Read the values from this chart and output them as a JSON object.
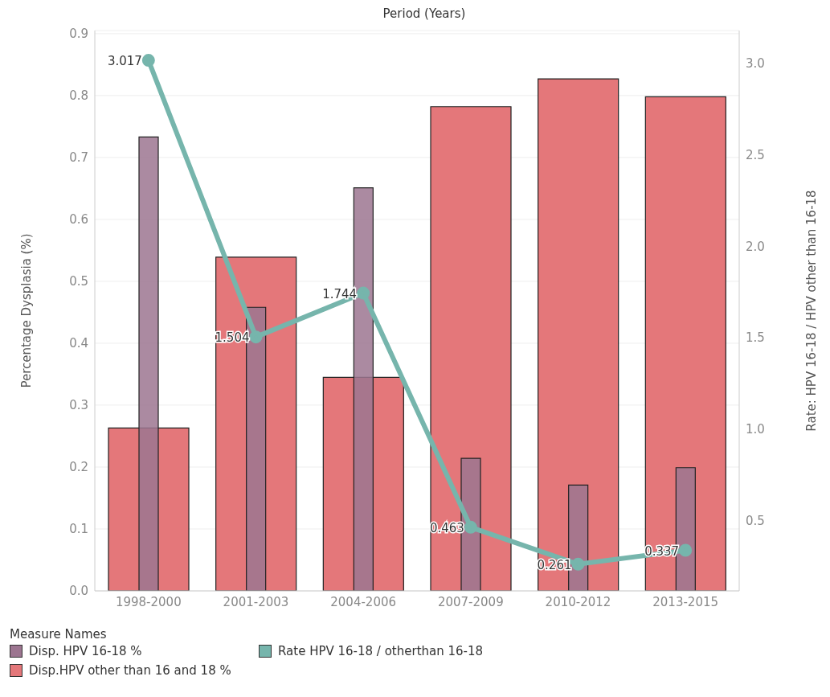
{
  "chart_data": {
    "type": "bar",
    "xlabel": "Period (Years)",
    "ylabel": "Percentage Dysplasia (%)",
    "y2label": "Rate: HPV 16-18 / HPV other than 16-18",
    "legend_title": "Measure Names",
    "categories": [
      "1998-2000",
      "2001-2003",
      "2004-2006",
      "2007-2009",
      "2010-2012",
      "2013-2015"
    ],
    "series": [
      {
        "name": "Disp. HPV 16-18 %",
        "color": "#9c7590",
        "values": [
          0.733,
          0.458,
          0.651,
          0.214,
          0.171,
          0.199
        ]
      },
      {
        "name": "Disp.HPV other than 16 and 18 %",
        "color": "#e4777a",
        "values": [
          0.263,
          0.539,
          0.345,
          0.782,
          0.827,
          0.798
        ]
      },
      {
        "name": "Rate HPV 16-18 / otherthan 16-18",
        "type": "line",
        "axis": "y2",
        "color": "#76b5ac",
        "marker": "circle",
        "values": [
          3.017,
          1.504,
          1.744,
          0.463,
          0.261,
          0.337
        ],
        "value_labels": [
          "3.017",
          "1.504",
          "1.744",
          "0.463",
          "0.261",
          "0.337"
        ]
      }
    ],
    "ylim": [
      0,
      0.905
    ],
    "yticks": [
      {
        "value": 0,
        "label": "0.0"
      },
      0.1,
      0.2,
      0.3,
      0.4,
      0.5,
      0.6,
      0.7,
      0.8,
      0.9
    ],
    "y2lim": [
      0.115,
      3.18
    ],
    "y2ticks": [
      0.5,
      {
        "value": 1,
        "label": "1.0"
      },
      1.5,
      {
        "value": 2,
        "label": "2.0"
      },
      2.5,
      {
        "value": 3,
        "label": "3.0"
      }
    ],
    "grid": "y",
    "legend": "bottom left"
  }
}
